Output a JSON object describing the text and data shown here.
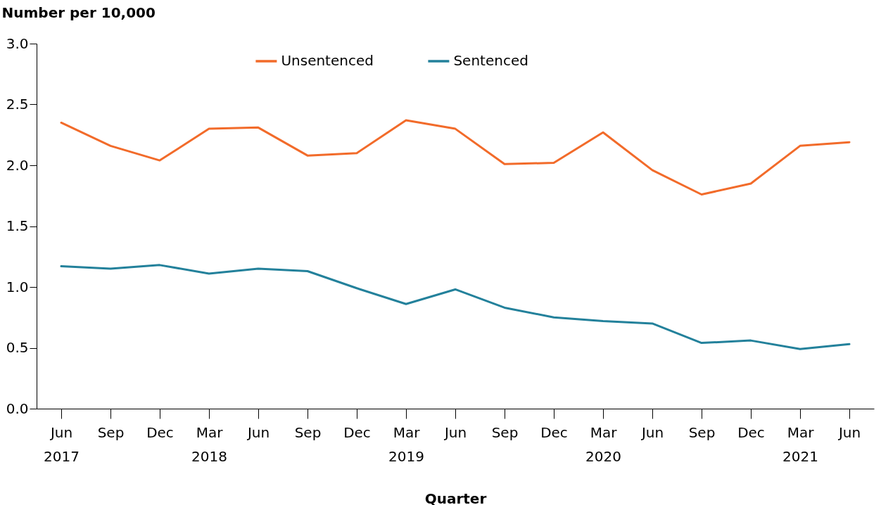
{
  "chart_data": {
    "type": "line",
    "xlabel": "Quarter",
    "ylabel": "Number per 10,000",
    "categories": [
      "Jun\n2017",
      "Sep",
      "Dec",
      "Mar\n2018",
      "Jun",
      "Sep",
      "Dec",
      "Mar\n2019",
      "Jun",
      "Sep",
      "Dec",
      "Mar\n2020",
      "Jun",
      "Sep",
      "Dec",
      "Mar\n2021",
      "Jun"
    ],
    "series": [
      {
        "name": "Unsentenced",
        "color": "#f26b2a",
        "values": [
          2.35,
          2.16,
          2.04,
          2.3,
          2.31,
          2.08,
          2.1,
          2.37,
          2.3,
          2.01,
          2.02,
          2.27,
          1.96,
          1.76,
          1.85,
          2.16,
          2.19
        ]
      },
      {
        "name": "Sentenced",
        "color": "#23819b",
        "values": [
          1.17,
          1.15,
          1.18,
          1.11,
          1.15,
          1.13,
          0.99,
          0.86,
          0.98,
          0.83,
          0.75,
          0.72,
          0.7,
          0.54,
          0.56,
          0.49,
          0.53
        ]
      }
    ],
    "ylim": [
      0,
      3
    ],
    "yticks": [
      {
        "value": 0,
        "label": "0.0"
      },
      0.5,
      {
        "value": 1,
        "label": "1.0"
      },
      1.5,
      {
        "value": 2,
        "label": "2.0"
      },
      2.5,
      {
        "value": 3,
        "label": "3.0"
      }
    ],
    "grid": false,
    "legend": "top",
    "marker": "none",
    "line_style": "solid"
  }
}
